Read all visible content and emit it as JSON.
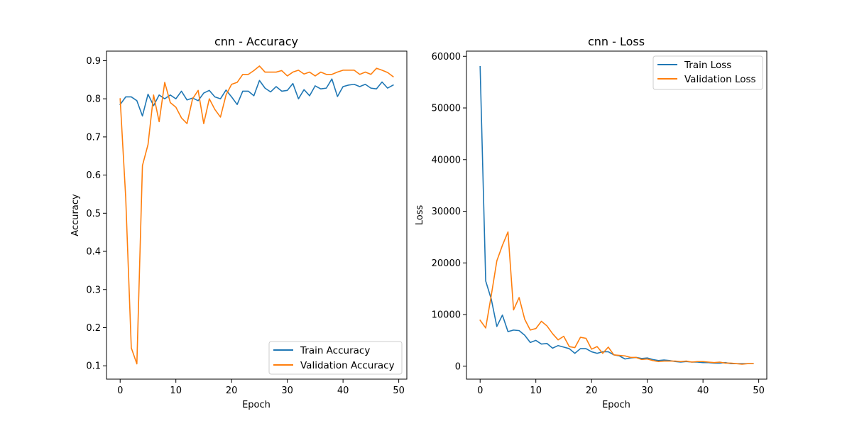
{
  "chart_data": [
    {
      "type": "line",
      "title": "cnn - Accuracy",
      "xlabel": "Epoch",
      "ylabel": "Accuracy",
      "xlim": [
        -2.45,
        51.45
      ],
      "ylim": [
        0.065,
        0.925
      ],
      "xticks": [
        0,
        10,
        20,
        30,
        40,
        50
      ],
      "yticks": [
        0.1,
        0.2,
        0.3,
        0.4,
        0.5,
        0.6,
        0.7,
        0.8,
        0.9
      ],
      "ytick_decimals": 1,
      "legend_position": "lower right",
      "x": [
        0,
        1,
        2,
        3,
        4,
        5,
        6,
        7,
        8,
        9,
        10,
        11,
        12,
        13,
        14,
        15,
        16,
        17,
        18,
        19,
        20,
        21,
        22,
        23,
        24,
        25,
        26,
        27,
        28,
        29,
        30,
        31,
        32,
        33,
        34,
        35,
        36,
        37,
        38,
        39,
        40,
        41,
        42,
        43,
        44,
        45,
        46,
        47,
        48,
        49
      ],
      "series": [
        {
          "name": "Train Accuracy",
          "color": "#1f77b4",
          "values": [
            0.785,
            0.805,
            0.805,
            0.795,
            0.755,
            0.812,
            0.782,
            0.81,
            0.8,
            0.81,
            0.8,
            0.82,
            0.797,
            0.802,
            0.795,
            0.815,
            0.822,
            0.805,
            0.8,
            0.823,
            0.805,
            0.785,
            0.82,
            0.82,
            0.808,
            0.848,
            0.828,
            0.818,
            0.832,
            0.82,
            0.822,
            0.84,
            0.8,
            0.824,
            0.808,
            0.834,
            0.826,
            0.828,
            0.852,
            0.806,
            0.832,
            0.836,
            0.838,
            0.832,
            0.838,
            0.828,
            0.826,
            0.844,
            0.828,
            0.836
          ]
        },
        {
          "name": "Validation Accuracy",
          "color": "#ff7f0e",
          "values": [
            0.8,
            0.54,
            0.147,
            0.105,
            0.625,
            0.68,
            0.81,
            0.74,
            0.843,
            0.79,
            0.778,
            0.75,
            0.735,
            0.8,
            0.822,
            0.735,
            0.8,
            0.772,
            0.752,
            0.81,
            0.838,
            0.843,
            0.864,
            0.864,
            0.874,
            0.886,
            0.87,
            0.87,
            0.87,
            0.874,
            0.86,
            0.87,
            0.875,
            0.865,
            0.87,
            0.86,
            0.87,
            0.864,
            0.864,
            0.87,
            0.875,
            0.875,
            0.875,
            0.864,
            0.87,
            0.864,
            0.88,
            0.875,
            0.869,
            0.858
          ]
        }
      ]
    },
    {
      "type": "line",
      "title": "cnn - Loss",
      "xlabel": "Epoch",
      "ylabel": "Loss",
      "xlim": [
        -2.45,
        51.45
      ],
      "ylim": [
        -2500,
        61000
      ],
      "xticks": [
        0,
        10,
        20,
        30,
        40,
        50
      ],
      "yticks": [
        0,
        10000,
        20000,
        30000,
        40000,
        50000,
        60000
      ],
      "ytick_decimals": 0,
      "legend_position": "upper right",
      "x": [
        0,
        1,
        2,
        3,
        4,
        5,
        6,
        7,
        8,
        9,
        10,
        11,
        12,
        13,
        14,
        15,
        16,
        17,
        18,
        19,
        20,
        21,
        22,
        23,
        24,
        25,
        26,
        27,
        28,
        29,
        30,
        31,
        32,
        33,
        34,
        35,
        36,
        37,
        38,
        39,
        40,
        41,
        42,
        43,
        44,
        45,
        46,
        47,
        48,
        49
      ],
      "series": [
        {
          "name": "Train Loss",
          "color": "#1f77b4",
          "values": [
            58000,
            16500,
            13000,
            7700,
            9900,
            6700,
            7000,
            6900,
            6000,
            4600,
            5000,
            4300,
            4400,
            3500,
            4000,
            3700,
            3400,
            2500,
            3400,
            3400,
            2800,
            2500,
            2800,
            2800,
            2200,
            2000,
            1400,
            1600,
            1700,
            1500,
            1600,
            1300,
            1100,
            1200,
            1100,
            900,
            800,
            900,
            800,
            800,
            700,
            700,
            600,
            600,
            700,
            500,
            500,
            500,
            500,
            500
          ]
        },
        {
          "name": "Validation Loss",
          "color": "#ff7f0e",
          "values": [
            8900,
            7400,
            13700,
            20400,
            23400,
            26000,
            10900,
            13300,
            9100,
            7000,
            7300,
            8700,
            7800,
            6300,
            5100,
            5800,
            3800,
            3600,
            5600,
            5400,
            3300,
            3800,
            2500,
            3700,
            2200,
            2100,
            2000,
            1700,
            1700,
            1300,
            1400,
            1100,
            900,
            1000,
            1000,
            1000,
            900,
            1000,
            800,
            900,
            900,
            800,
            700,
            800,
            600,
            600,
            500,
            400,
            500,
            500
          ]
        }
      ]
    }
  ]
}
